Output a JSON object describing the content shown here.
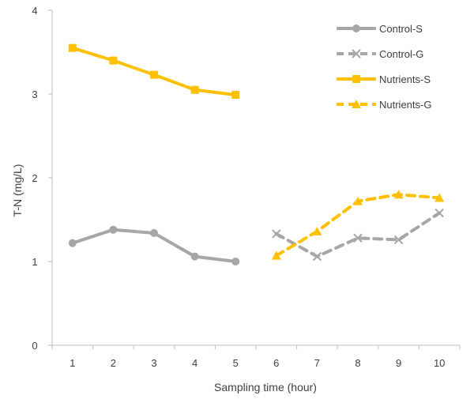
{
  "chart_data": {
    "type": "line",
    "title": "",
    "xlabel": "Sampling time (hour)",
    "ylabel": "T-N  (mg/L)",
    "x": [
      1,
      2,
      3,
      4,
      5,
      6,
      7,
      8,
      9,
      10
    ],
    "xlim": [
      0.5,
      10.5
    ],
    "ylim": [
      0,
      4
    ],
    "yticks": [
      0,
      1,
      2,
      3,
      4
    ],
    "grid": false,
    "legend_position": "top-right",
    "series": [
      {
        "name": "Control-S",
        "legend_label": "Control-S",
        "x": [
          1,
          2,
          3,
          4,
          5
        ],
        "values": [
          1.22,
          1.38,
          1.34,
          1.06,
          1.0
        ],
        "color": "#a6a6a6",
        "dashed": false,
        "marker": "circle"
      },
      {
        "name": "Control-G",
        "legend_label": "Control-G",
        "x": [
          6,
          7,
          8,
          9,
          10
        ],
        "values": [
          1.33,
          1.06,
          1.28,
          1.26,
          1.58
        ],
        "color": "#a6a6a6",
        "dashed": true,
        "marker": "x"
      },
      {
        "name": "Nutrients-S",
        "legend_label": "Nutrients-S",
        "x": [
          1,
          2,
          3,
          4,
          5
        ],
        "values": [
          3.55,
          3.4,
          3.23,
          3.05,
          2.99
        ],
        "color": "#ffc000",
        "dashed": false,
        "marker": "square"
      },
      {
        "name": "Nutrients-G",
        "legend_label": "Nutrients-G",
        "x": [
          6,
          7,
          8,
          9,
          10
        ],
        "values": [
          1.07,
          1.36,
          1.72,
          1.8,
          1.76
        ],
        "color": "#ffc000",
        "dashed": true,
        "marker": "triangle"
      }
    ]
  }
}
